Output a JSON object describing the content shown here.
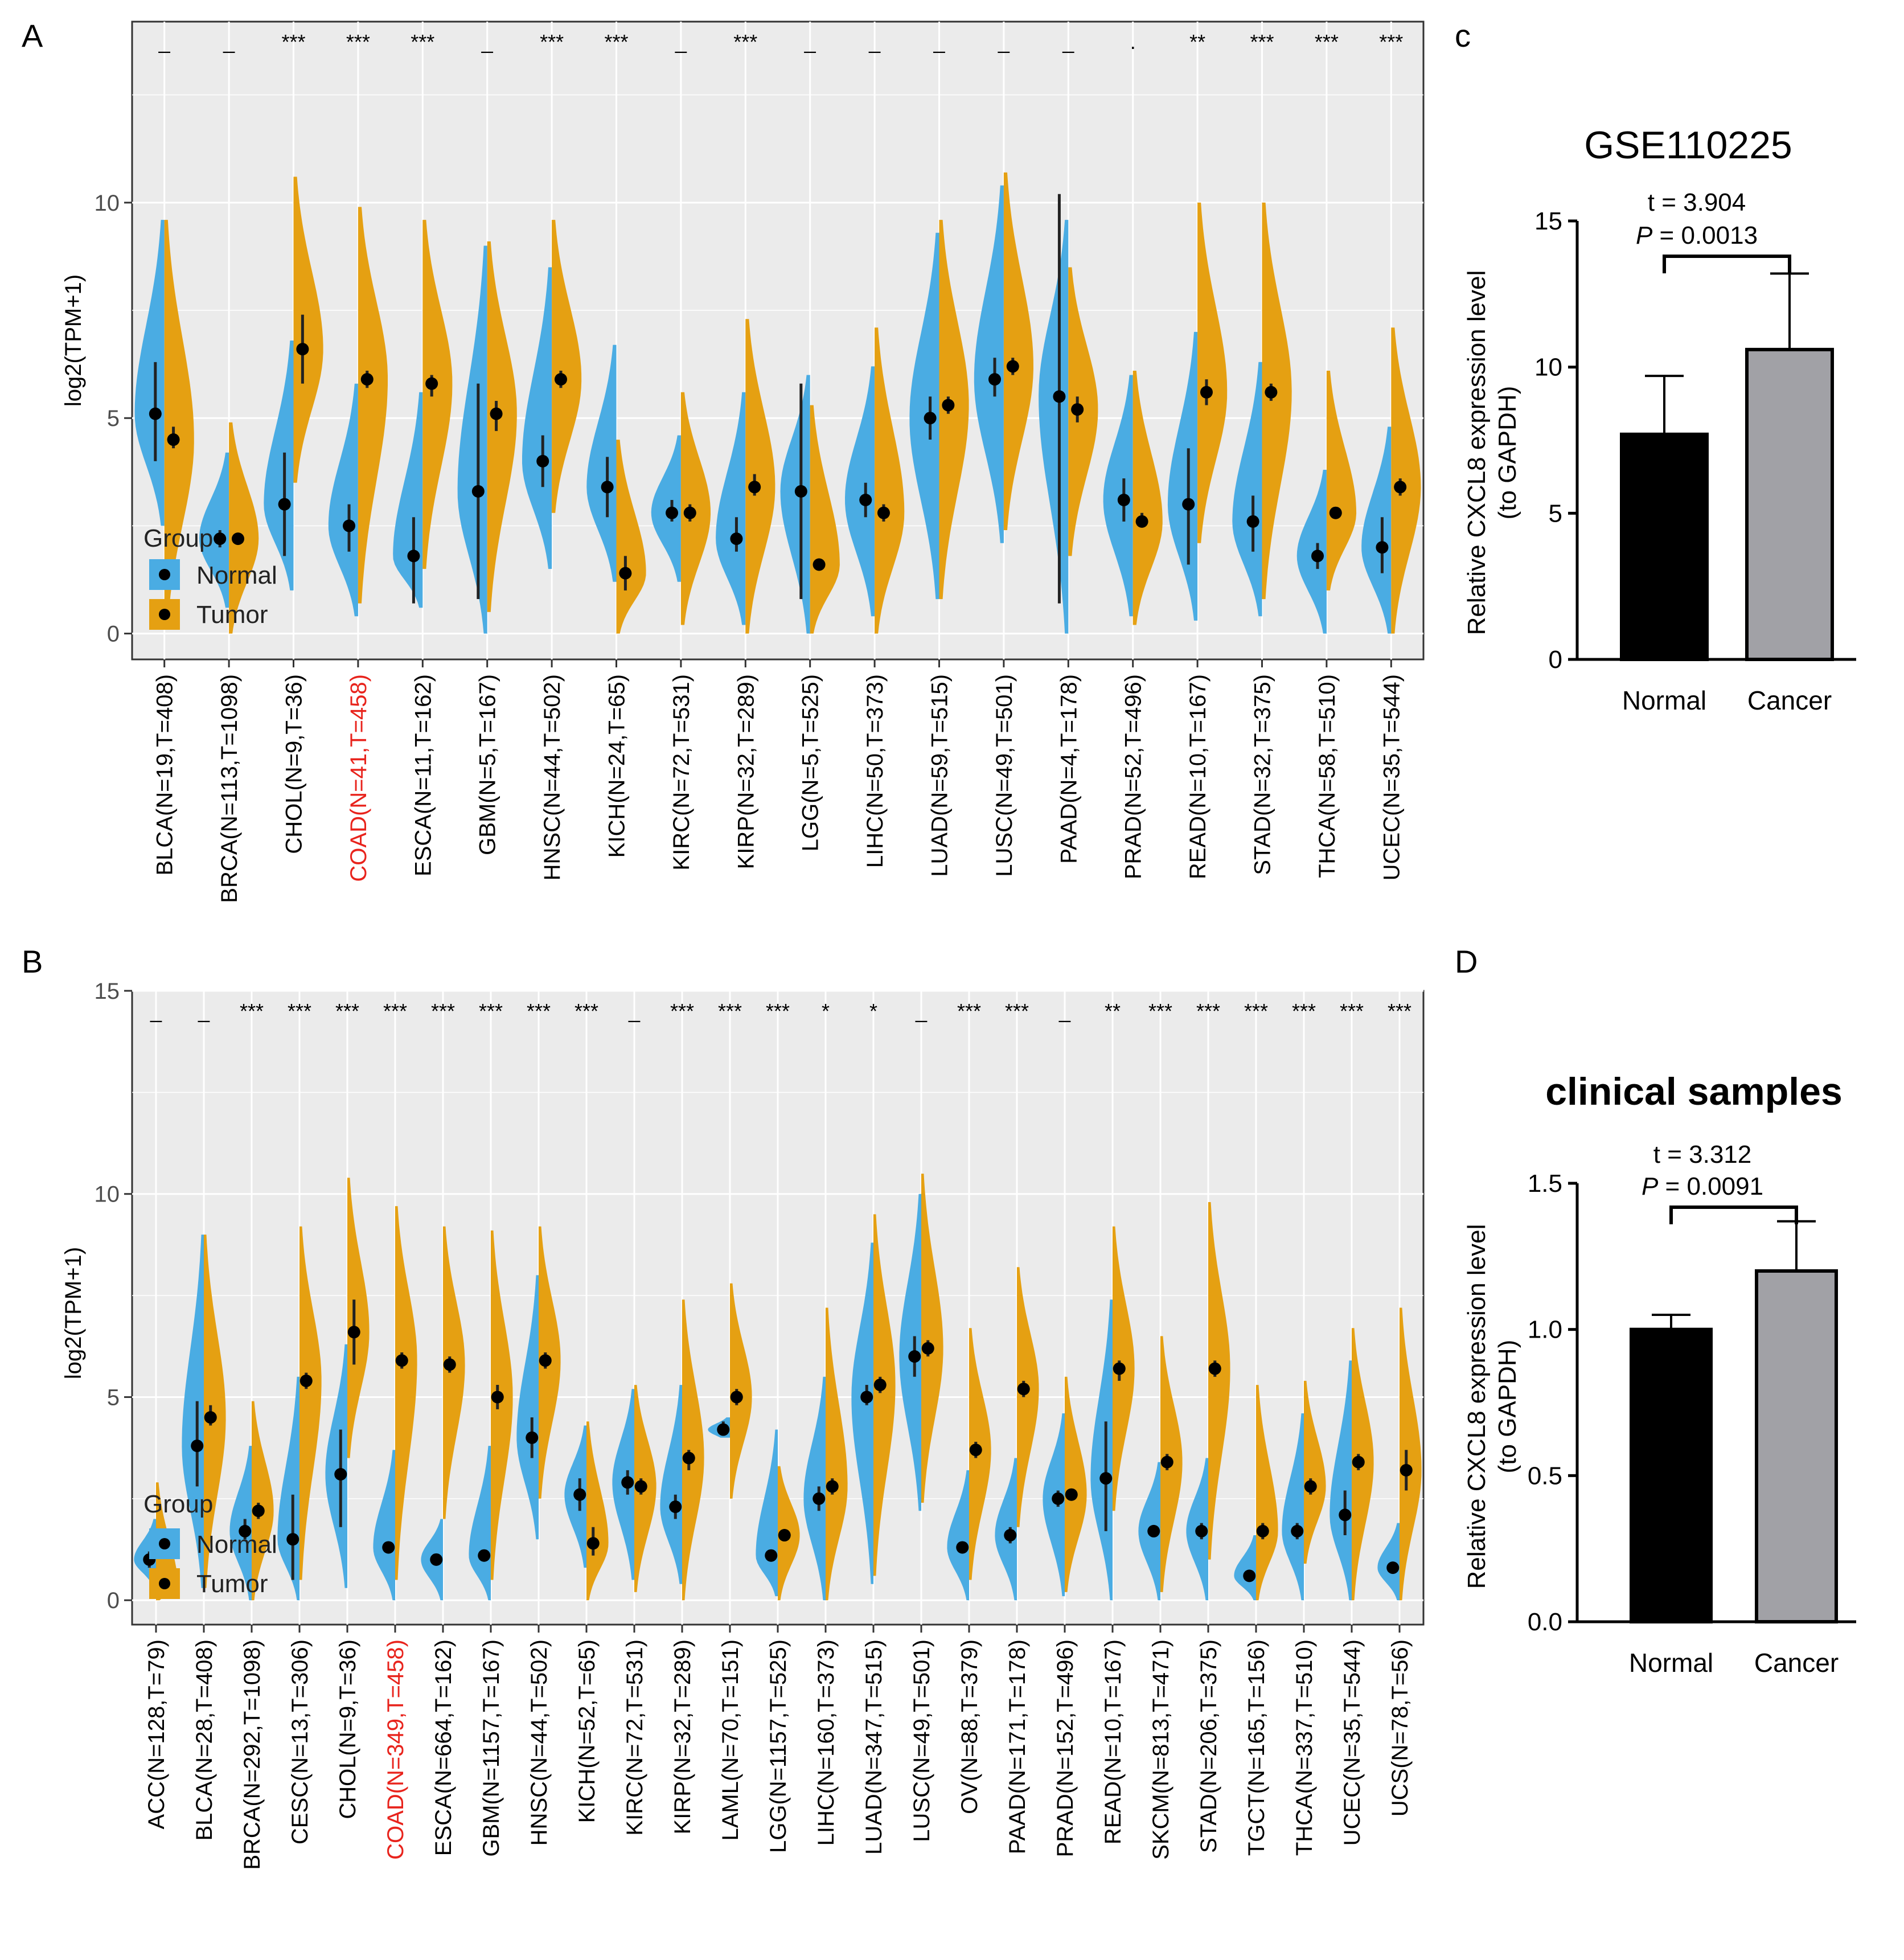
{
  "panel_labels": {
    "a": "A",
    "b": "B",
    "c": "c",
    "d": "D"
  },
  "colors": {
    "normal": "#4AACE3",
    "tumor": "#E5A012",
    "highlight": "#E8231C",
    "bar_normal": "#000000",
    "bar_cancer": "#A1A1A6",
    "panel_bg": "#EBEBEB",
    "grid": "#FFFFFF"
  },
  "chart_data": [
    {
      "id": "A",
      "type": "split-violin",
      "ylabel": "log2(TPM+1)",
      "ylim": [
        -0.6,
        14.2
      ],
      "yticks": [
        0,
        5,
        10
      ],
      "legend": {
        "title": "Group",
        "items": [
          "Normal",
          "Tumor"
        ],
        "placement": "bottom-left"
      },
      "highlight_category": "COAD(N=41,T=458)",
      "categories": [
        "BLCA(N=19,T=408)",
        "BRCA(N=113,T=1098)",
        "CHOL(N=9,T=36)",
        "COAD(N=41,T=458)",
        "ESCA(N=11,T=162)",
        "GBM(N=5,T=167)",
        "HNSC(N=44,T=502)",
        "KICH(N=24,T=65)",
        "KIRC(N=72,T=531)",
        "KIRP(N=32,T=289)",
        "LGG(N=5,T=525)",
        "LIHC(N=50,T=373)",
        "LUAD(N=59,T=515)",
        "LUSC(N=49,T=501)",
        "PAAD(N=4,T=178)",
        "PRAD(N=52,T=496)",
        "READ(N=10,T=167)",
        "STAD(N=32,T=375)",
        "THCA(N=58,T=510)",
        "UCEC(N=35,T=544)"
      ],
      "significance": [
        "_",
        "_",
        "***",
        "***",
        "***",
        "_",
        "***",
        "***",
        "_",
        "***",
        "_",
        "_",
        "_",
        "_",
        "_",
        ".",
        "**",
        "***",
        "***",
        "***"
      ],
      "normal": {
        "median": [
          5.1,
          2.2,
          3.0,
          2.5,
          1.8,
          3.3,
          4.0,
          3.4,
          2.8,
          2.2,
          3.3,
          3.1,
          5.0,
          5.9,
          5.5,
          3.1,
          3.0,
          2.6,
          1.8,
          2.0
        ],
        "q1": [
          4.0,
          2.0,
          1.8,
          1.9,
          0.7,
          0.8,
          3.4,
          2.7,
          2.6,
          1.9,
          0.8,
          2.7,
          4.5,
          5.5,
          0.7,
          2.6,
          1.6,
          1.9,
          1.5,
          1.4
        ],
        "q3": [
          6.3,
          2.4,
          4.2,
          3.0,
          2.7,
          5.8,
          4.6,
          4.1,
          3.1,
          2.7,
          5.8,
          3.5,
          5.5,
          6.4,
          10.2,
          3.6,
          4.3,
          3.2,
          2.1,
          2.7
        ],
        "min": [
          2.5,
          0.6,
          1.0,
          0.4,
          0.6,
          0.0,
          1.5,
          1.2,
          1.2,
          0.2,
          0.0,
          0.4,
          0.8,
          2.1,
          0.0,
          0.4,
          0.3,
          0.4,
          0.0,
          0.0
        ],
        "max": [
          9.6,
          4.2,
          6.8,
          5.8,
          5.6,
          9.0,
          8.5,
          6.7,
          4.6,
          5.6,
          6.0,
          6.2,
          9.3,
          10.4,
          9.6,
          6.0,
          7.0,
          6.3,
          3.8,
          4.8
        ]
      },
      "tumor": {
        "median": [
          4.5,
          2.2,
          6.6,
          5.9,
          5.8,
          5.1,
          5.9,
          1.4,
          2.8,
          3.4,
          1.6,
          2.8,
          5.3,
          6.2,
          5.2,
          2.6,
          5.6,
          5.6,
          2.8,
          3.4
        ],
        "q1": [
          4.3,
          2.1,
          5.8,
          5.7,
          5.5,
          4.7,
          5.7,
          1.0,
          2.6,
          3.2,
          1.5,
          2.6,
          5.1,
          6.0,
          4.9,
          2.5,
          5.3,
          5.4,
          2.7,
          3.2
        ],
        "q3": [
          4.8,
          2.3,
          7.4,
          6.1,
          6.0,
          5.4,
          6.1,
          1.8,
          3.0,
          3.7,
          1.7,
          3.0,
          5.5,
          6.4,
          5.5,
          2.8,
          5.9,
          5.8,
          2.9,
          3.6
        ],
        "min": [
          0.2,
          0.0,
          3.5,
          0.7,
          1.5,
          0.5,
          2.8,
          0.0,
          0.2,
          0.0,
          0.0,
          0.0,
          0.8,
          2.4,
          1.8,
          0.2,
          2.1,
          0.8,
          1.0,
          0.0
        ],
        "max": [
          9.6,
          4.9,
          10.6,
          9.9,
          9.6,
          9.1,
          9.6,
          4.5,
          5.6,
          7.3,
          5.3,
          7.1,
          9.6,
          10.7,
          8.5,
          6.1,
          10.0,
          10.0,
          6.1,
          7.1
        ]
      }
    },
    {
      "id": "B",
      "type": "split-violin",
      "ylabel": "log2(TPM+1)",
      "ylim": [
        -0.6,
        15.0
      ],
      "yticks": [
        0,
        5,
        10,
        15
      ],
      "legend": {
        "title": "Group",
        "items": [
          "Normal",
          "Tumor"
        ],
        "placement": "bottom-left"
      },
      "highlight_category": "COAD(N=349,T=458)",
      "categories": [
        "ACC(N=128,T=79)",
        "BLCA(N=28,T=408)",
        "BRCA(N=292,T=1098)",
        "CESC(N=13,T=306)",
        "CHOL(N=9,T=36)",
        "COAD(N=349,T=458)",
        "ESCA(N=664,T=162)",
        "GBM(N=1157,T=167)",
        "HNSC(N=44,T=502)",
        "KICH(N=52,T=65)",
        "KIRC(N=72,T=531)",
        "KIRP(N=32,T=289)",
        "LAML(N=70,T=151)",
        "LGG(N=1157,T=525)",
        "LIHC(N=160,T=373)",
        "LUAD(N=347,T=515)",
        "LUSC(N=49,T=501)",
        "OV(N=88,T=379)",
        "PAAD(N=171,T=178)",
        "PRAD(N=152,T=496)",
        "READ(N=10,T=167)",
        "SKCM(N=813,T=471)",
        "STAD(N=206,T=375)",
        "TGCT(N=165,T=156)",
        "THCA(N=337,T=510)",
        "UCEC(N=35,T=544)",
        "UCS(N=78,T=56)"
      ],
      "significance": [
        "_",
        "_",
        "***",
        "***",
        "***",
        "***",
        "***",
        "***",
        "***",
        "***",
        "_",
        "***",
        "***",
        "***",
        "*",
        "*",
        "_",
        "***",
        "***",
        "_",
        "**",
        "***",
        "***",
        "***",
        "***",
        "***",
        "***"
      ],
      "normal": {
        "median": [
          1.0,
          3.8,
          1.7,
          1.5,
          3.1,
          1.3,
          1.0,
          1.1,
          4.0,
          2.6,
          2.9,
          2.3,
          4.2,
          1.1,
          2.5,
          5.0,
          6.0,
          1.3,
          1.6,
          2.5,
          3.0,
          1.7,
          1.7,
          0.6,
          1.7,
          2.1,
          0.8
        ],
        "q1": [
          0.8,
          2.8,
          1.5,
          0.5,
          1.8,
          1.2,
          0.9,
          1.0,
          3.5,
          2.2,
          2.6,
          2.0,
          4.1,
          1.0,
          2.2,
          4.8,
          5.5,
          1.2,
          1.4,
          2.3,
          1.7,
          1.6,
          1.5,
          0.5,
          1.5,
          1.6,
          0.7
        ],
        "q3": [
          1.2,
          4.9,
          2.0,
          2.6,
          4.2,
          1.4,
          1.1,
          1.2,
          4.5,
          3.0,
          3.2,
          2.6,
          4.4,
          1.2,
          2.8,
          5.3,
          6.5,
          1.4,
          1.8,
          2.7,
          4.4,
          1.8,
          1.9,
          0.7,
          1.9,
          2.7,
          0.9
        ],
        "min": [
          0.3,
          0.3,
          0.0,
          0.0,
          0.3,
          0.0,
          0.0,
          0.0,
          1.5,
          0.8,
          0.5,
          0.4,
          4.0,
          0.1,
          0.0,
          0.4,
          2.2,
          0.0,
          0.0,
          0.1,
          0.0,
          0.0,
          0.0,
          0.0,
          0.0,
          0.0,
          0.0
        ],
        "max": [
          2.0,
          9.0,
          3.8,
          5.5,
          6.3,
          3.7,
          2.0,
          3.8,
          8.0,
          4.3,
          5.2,
          5.3,
          4.5,
          4.2,
          5.5,
          8.8,
          10.0,
          3.2,
          3.5,
          4.6,
          7.4,
          3.4,
          3.5,
          1.6,
          4.6,
          5.9,
          1.9
        ]
      },
      "tumor": {
        "median": [
          0.3,
          4.5,
          2.2,
          5.4,
          6.6,
          5.9,
          5.8,
          5.0,
          5.9,
          1.4,
          2.8,
          3.5,
          5.0,
          1.6,
          2.8,
          5.3,
          6.2,
          3.7,
          5.2,
          2.6,
          5.7,
          3.4,
          5.7,
          1.7,
          2.8,
          3.4,
          3.2
        ],
        "q1": [
          0.2,
          4.3,
          2.0,
          5.2,
          5.8,
          5.7,
          5.6,
          4.7,
          5.7,
          1.1,
          2.6,
          3.2,
          4.8,
          1.5,
          2.6,
          5.1,
          6.0,
          3.5,
          5.0,
          2.5,
          5.4,
          3.2,
          5.5,
          1.5,
          2.6,
          3.2,
          2.7
        ],
        "q3": [
          0.4,
          4.8,
          2.4,
          5.6,
          7.4,
          6.1,
          6.0,
          5.3,
          6.1,
          1.8,
          3.0,
          3.7,
          5.2,
          1.7,
          3.0,
          5.5,
          6.4,
          3.9,
          5.4,
          2.7,
          5.9,
          3.6,
          5.9,
          1.9,
          3.0,
          3.6,
          3.7
        ],
        "min": [
          0.0,
          0.3,
          0.0,
          0.5,
          3.5,
          0.5,
          2.0,
          0.5,
          2.5,
          0.0,
          0.2,
          0.0,
          2.5,
          0.0,
          0.0,
          0.6,
          2.4,
          0.5,
          1.8,
          0.2,
          2.2,
          0.2,
          1.0,
          0.0,
          0.9,
          0.0,
          0.0
        ],
        "max": [
          2.9,
          9.0,
          4.9,
          9.2,
          10.4,
          9.7,
          9.2,
          9.1,
          9.2,
          4.4,
          5.3,
          7.4,
          7.8,
          3.3,
          7.2,
          9.5,
          10.5,
          6.7,
          8.2,
          5.5,
          9.2,
          6.5,
          9.8,
          5.3,
          5.4,
          6.7,
          7.2
        ]
      }
    },
    {
      "id": "C",
      "type": "bar",
      "title": "GSE110225",
      "ylabel": "Relative CXCL8  expression level",
      "ylabel2": "(to GAPDH)",
      "categories": [
        "Normal",
        "Cancer"
      ],
      "values": [
        7.7,
        10.6
      ],
      "errors": [
        2.0,
        2.6
      ],
      "ylim": [
        0,
        15
      ],
      "yticks": [
        "0",
        "5",
        "10",
        "15"
      ],
      "yticks_values": [
        0,
        5,
        10,
        15
      ],
      "stat": {
        "t": "t = 3.904",
        "p_label": "P",
        "p_value": " = 0.0013"
      }
    },
    {
      "id": "D",
      "type": "bar",
      "title": "clinical samples",
      "ylabel": "Relative CXCL8  expression level",
      "ylabel2": "(to GAPDH)",
      "categories": [
        "Normal",
        "Cancer"
      ],
      "values": [
        1.0,
        1.2
      ],
      "errors": [
        0.05,
        0.17
      ],
      "ylim": [
        0,
        1.5
      ],
      "yticks": [
        "0.0",
        "0.5",
        "1.0",
        "1.5"
      ],
      "yticks_values": [
        0,
        0.5,
        1.0,
        1.5
      ],
      "stat": {
        "t": "t = 3.312",
        "p_label": "P",
        "p_value": " = 0.0091"
      }
    }
  ]
}
